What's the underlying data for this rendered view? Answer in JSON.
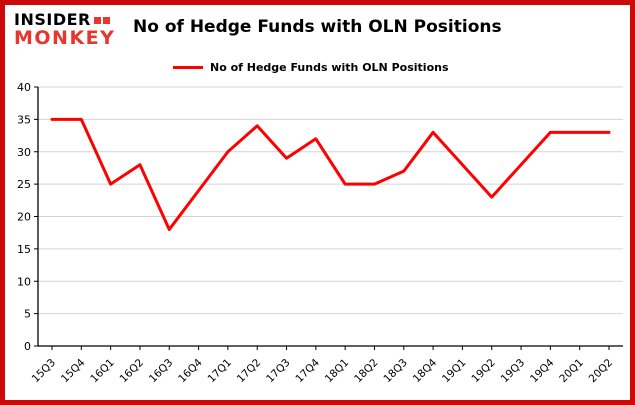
{
  "logo": {
    "line1": "INSIDER",
    "line2": "MONKEY"
  },
  "header": {
    "title": "No of Hedge Funds with OLN Positions"
  },
  "colors": {
    "border": "#cc0a0a",
    "line": "#ff0000",
    "grid": "#d4d4d4",
    "axis": "#000000",
    "logo_red": "#e8352e"
  },
  "chart_data": {
    "type": "line",
    "title": "No of Hedge Funds with OLN Positions",
    "categories": [
      "15Q3",
      "15Q4",
      "16Q1",
      "16Q2",
      "16Q3",
      "16Q4",
      "17Q1",
      "17Q2",
      "17Q3",
      "17Q4",
      "18Q1",
      "18Q2",
      "18Q3",
      "18Q4",
      "19Q1",
      "19Q2",
      "19Q3",
      "19Q4",
      "20Q1",
      "20Q2"
    ],
    "series": [
      {
        "name": "No of Hedge Funds with OLN Positions",
        "color": "#ff0000",
        "values": [
          35,
          35,
          25,
          28,
          18,
          24,
          30,
          34,
          29,
          32,
          25,
          25,
          27,
          33,
          28,
          23,
          28,
          33,
          33,
          33
        ]
      }
    ],
    "xlabel": "",
    "ylabel": "",
    "ylim": [
      0,
      40
    ],
    "yticks": [
      0,
      5,
      10,
      15,
      20,
      25,
      30,
      35,
      40
    ],
    "grid": true,
    "legend_position": "top-left"
  }
}
